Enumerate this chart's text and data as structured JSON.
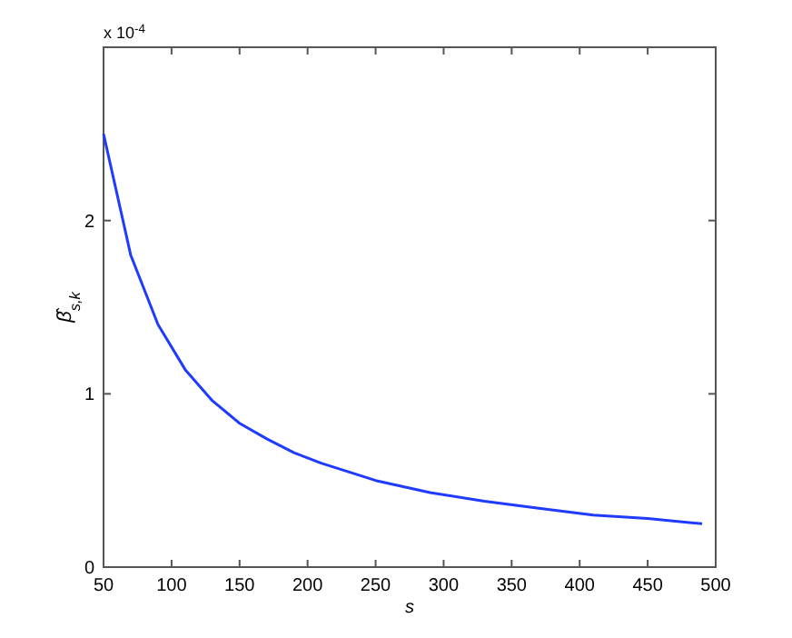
{
  "chart_data": {
    "type": "line",
    "xlabel": "s",
    "ylabel": "β̂$_{s,k}$",
    "annotations": [
      "x 10$^{-4}$"
    ],
    "x": [
      50,
      70,
      90,
      110,
      130,
      150,
      170,
      190,
      210,
      250,
      290,
      330,
      370,
      410,
      450,
      490
    ],
    "series": [
      {
        "color": "#1f3bff",
        "values": [
          2.5,
          1.8,
          1.4,
          1.14,
          0.96,
          0.83,
          0.74,
          0.66,
          0.6,
          0.5,
          0.43,
          0.38,
          0.34,
          0.3,
          0.28,
          0.25
        ]
      }
    ],
    "xlim": [
      50,
      500
    ],
    "xticks": [
      50,
      100,
      150,
      200,
      250,
      300,
      350,
      400,
      450,
      500
    ],
    "ylim": [
      0,
      3
    ],
    "yticks": [
      0,
      1,
      2
    ],
    "grid": false,
    "marker": "none",
    "line_style": "solid"
  }
}
